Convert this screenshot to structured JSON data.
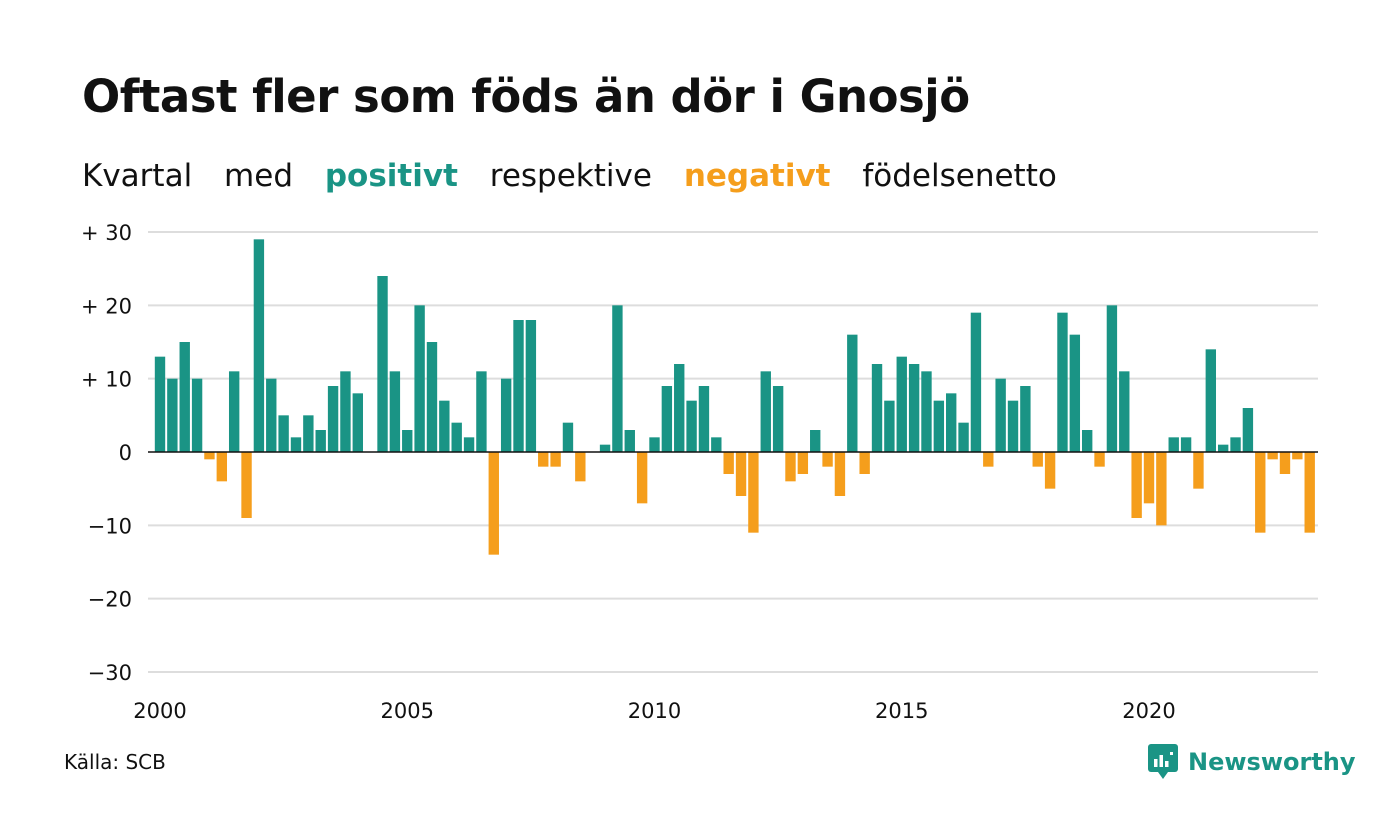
{
  "title": "Oftast fler som föds än dör i Gnosjö",
  "subtitle": {
    "part1": "Kvartal",
    "part2": "med",
    "positive": "positivt",
    "part3": "respektive",
    "negative": "negativt",
    "part4": "födelsenetto"
  },
  "source": "Källa: SCB",
  "brand": "Newsworthy",
  "colors": {
    "positive": "#1a9485",
    "negative": "#f59e1c",
    "grid": "#dddddd",
    "zero": "#111111",
    "text": "#111111"
  },
  "chart_data": {
    "type": "bar",
    "ylim": [
      -30,
      30
    ],
    "yticks": [
      {
        "value": 30,
        "label": "+ 30"
      },
      {
        "value": 20,
        "label": "+ 20"
      },
      {
        "value": 10,
        "label": "+ 10"
      },
      {
        "value": 0,
        "label": "0"
      },
      {
        "value": -10,
        "label": "−10"
      },
      {
        "value": -20,
        "label": "−20"
      },
      {
        "value": -30,
        "label": "−30"
      }
    ],
    "xticks": [
      "2000",
      "2005",
      "2010",
      "2015",
      "2020"
    ],
    "start_year": 2000,
    "end_year": 2023,
    "values": [
      13,
      10,
      15,
      10,
      -1,
      -4,
      11,
      -9,
      29,
      10,
      5,
      2,
      5,
      3,
      9,
      11,
      8,
      0,
      24,
      11,
      3,
      20,
      15,
      7,
      4,
      2,
      11,
      -14,
      10,
      18,
      18,
      -2,
      -2,
      4,
      -4,
      0,
      1,
      20,
      3,
      -7,
      2,
      9,
      12,
      7,
      9,
      2,
      -3,
      -6,
      -11,
      11,
      9,
      -4,
      -3,
      3,
      -2,
      -6,
      16,
      -3,
      12,
      7,
      13,
      12,
      11,
      7,
      8,
      4,
      19,
      -2,
      10,
      7,
      9,
      -2,
      -5,
      19,
      16,
      3,
      -2,
      20,
      11,
      -9,
      -7,
      -10,
      2,
      2,
      -5,
      14,
      1,
      2,
      6,
      -11,
      -1,
      -3,
      -1,
      -11
    ]
  }
}
